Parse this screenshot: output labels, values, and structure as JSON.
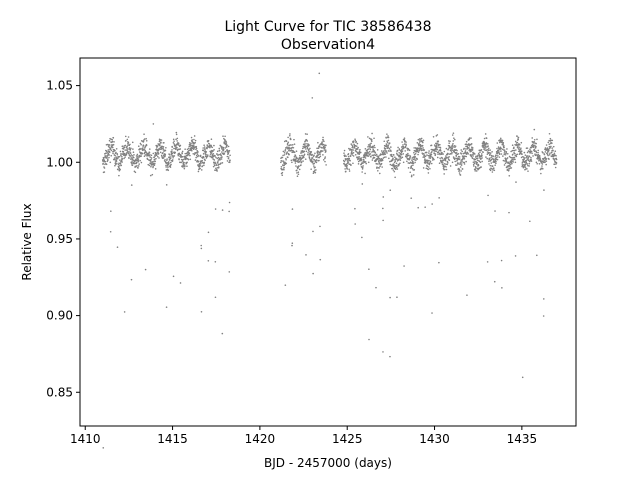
{
  "chart_data": {
    "type": "scatter",
    "title": "Light Curve for TIC 38586438",
    "subtitle": "Observation4",
    "xlabel": "BJD - 2457000 (days)",
    "ylabel": "Relative Flux",
    "xlim": [
      1409.7,
      1438.1
    ],
    "ylim": [
      0.828,
      1.068
    ],
    "xticks": [
      1410,
      1415,
      1420,
      1425,
      1430,
      1435
    ],
    "yticks": [
      0.85,
      0.9,
      0.95,
      1.0,
      1.05
    ],
    "ytick_labels": [
      "0.85",
      "0.90",
      "0.95",
      "1.00",
      "1.05"
    ],
    "grid": false,
    "marker_color": "#808080",
    "series": [
      {
        "segments": [
          [
            1411.0,
            1418.3
          ],
          [
            1421.2,
            1423.8
          ],
          [
            1424.8,
            1437.0
          ]
        ],
        "baseline": 1.0,
        "modulation_period_days": 0.93,
        "modulation_amplitude": 0.014,
        "eclipse_period_days": 0.4,
        "eclipse_min_flux": 0.842,
        "outlier_points": [
          {
            "x": 1423.4,
            "y": 1.058
          },
          {
            "x": 1423.0,
            "y": 1.042
          },
          {
            "x": 1413.9,
            "y": 1.025
          }
        ]
      }
    ]
  }
}
